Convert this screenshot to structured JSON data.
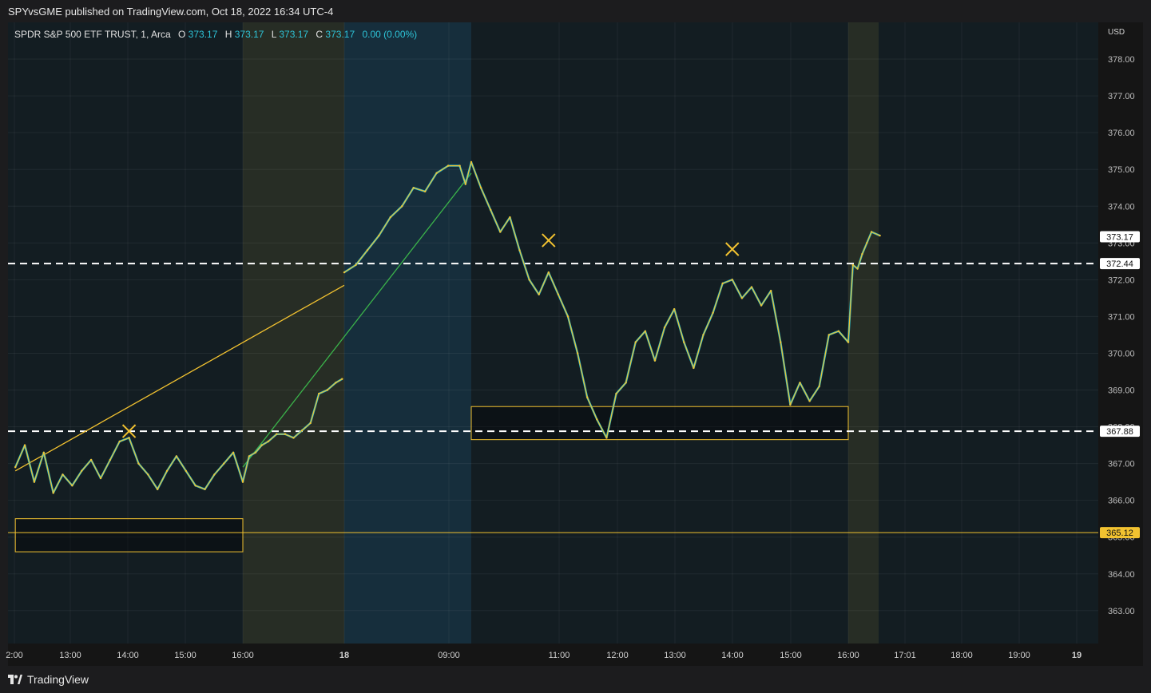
{
  "header": {
    "published": "SPYvsGME published on TradingView.com, Oct 18, 2022 16:34 UTC-4"
  },
  "legend": {
    "symbol": "SPDR S&P 500 ETF TRUST, 1, Arca",
    "o_label": "O",
    "o_value": "373.17",
    "h_label": "H",
    "h_value": "373.17",
    "l_label": "L",
    "l_value": "373.17",
    "c_label": "C",
    "c_value": "373.17",
    "change": "0.00 (0.00%)"
  },
  "footer": {
    "brand": "TradingView",
    "logo_icon": "tradingview-logo-icon"
  },
  "colors": {
    "accent": "#f2c230",
    "legend_value": "#2ec4d8",
    "price_line_up": "#f2c230",
    "price_line_alt": "#22b7c9",
    "trend_green": "#3bb34a"
  },
  "chart_data": {
    "type": "line",
    "title": "SPDR S&P 500 ETF TRUST, 1, Arca",
    "currency_label": "USD",
    "ylim": [
      362.4,
      379.0
    ],
    "y_ticks": [
      "378.00",
      "377.00",
      "376.00",
      "375.00",
      "374.00",
      "373.00",
      "372.00",
      "371.00",
      "370.00",
      "369.00",
      "368.00",
      "367.00",
      "366.00",
      "365.00",
      "364.00",
      "363.00"
    ],
    "x_ticks": [
      {
        "label": "2:00",
        "bold": false
      },
      {
        "label": "13:00",
        "bold": false
      },
      {
        "label": "14:00",
        "bold": false
      },
      {
        "label": "15:00",
        "bold": false
      },
      {
        "label": "16:00",
        "bold": false
      },
      {
        "label": "18",
        "bold": true
      },
      {
        "label": "09:00",
        "bold": false
      },
      {
        "label": "11:00",
        "bold": false
      },
      {
        "label": "12:00",
        "bold": false
      },
      {
        "label": "13:00",
        "bold": false
      },
      {
        "label": "14:00",
        "bold": false
      },
      {
        "label": "15:00",
        "bold": false
      },
      {
        "label": "16:00",
        "bold": false
      },
      {
        "label": "17:01",
        "bold": false
      },
      {
        "label": "18:00",
        "bold": false
      },
      {
        "label": "19:00",
        "bold": false
      },
      {
        "label": "19",
        "bold": true
      }
    ],
    "sessions": [
      {
        "name": "post-market-oct17",
        "start": "16:00",
        "end": "20:00"
      },
      {
        "name": "pre-market-oct18",
        "start": "04:00",
        "end": "09:30"
      },
      {
        "name": "post-market-oct18",
        "start": "16:00",
        "end": "16:34"
      }
    ],
    "price_labels": [
      {
        "value": 373.17,
        "text": "373.17",
        "style": "last"
      },
      {
        "value": 372.44,
        "text": "372.44",
        "style": "level"
      },
      {
        "value": 367.88,
        "text": "367.88",
        "style": "level"
      },
      {
        "value": 365.12,
        "text": "365.12",
        "style": "highlight"
      }
    ],
    "horizontal_lines": [
      {
        "value": 372.44,
        "style": "dashed"
      },
      {
        "value": 367.88,
        "style": "dashed"
      },
      {
        "value": 365.12,
        "style": "solid"
      }
    ],
    "zones": [
      {
        "from": "Oct 17 12:00",
        "to": "Oct 17 16:00",
        "high": 365.5,
        "low": 364.6
      },
      {
        "from": "Oct 18 09:30",
        "to": "Oct 18 16:00",
        "high": 368.55,
        "low": 367.65
      }
    ],
    "series": [
      {
        "points": [
          [
            "Oct 17 12:00",
            366.9
          ],
          [
            "Oct 17 12:10",
            367.5
          ],
          [
            "Oct 17 12:20",
            366.5
          ],
          [
            "Oct 17 12:30",
            367.3
          ],
          [
            "Oct 17 12:40",
            366.2
          ],
          [
            "Oct 17 12:50",
            366.7
          ],
          [
            "Oct 17 13:00",
            366.4
          ],
          [
            "Oct 17 13:10",
            366.8
          ],
          [
            "Oct 17 13:20",
            367.1
          ],
          [
            "Oct 17 13:30",
            366.6
          ],
          [
            "Oct 17 13:40",
            367.1
          ],
          [
            "Oct 17 13:50",
            367.6
          ],
          [
            "Oct 17 14:00",
            367.7
          ],
          [
            "Oct 17 14:10",
            367.0
          ],
          [
            "Oct 17 14:20",
            366.7
          ],
          [
            "Oct 17 14:30",
            366.3
          ],
          [
            "Oct 17 14:40",
            366.8
          ],
          [
            "Oct 17 14:50",
            367.2
          ],
          [
            "Oct 17 15:00",
            366.8
          ],
          [
            "Oct 17 15:10",
            366.4
          ],
          [
            "Oct 17 15:20",
            366.3
          ],
          [
            "Oct 17 15:30",
            366.7
          ],
          [
            "Oct 17 15:40",
            367.0
          ],
          [
            "Oct 17 15:50",
            367.3
          ],
          [
            "Oct 17 16:00",
            366.5
          ],
          [
            "Oct 17 16:15",
            367.2
          ],
          [
            "Oct 17 16:30",
            367.3
          ],
          [
            "Oct 17 16:45",
            367.5
          ],
          [
            "Oct 17 17:00",
            367.6
          ],
          [
            "Oct 17 17:20",
            367.8
          ],
          [
            "Oct 17 17:40",
            367.8
          ],
          [
            "Oct 17 18:00",
            367.7
          ],
          [
            "Oct 17 18:20",
            367.9
          ],
          [
            "Oct 17 18:40",
            368.1
          ],
          [
            "Oct 17 19:00",
            368.9
          ],
          [
            "Oct 17 19:20",
            369.0
          ],
          [
            "Oct 17 19:40",
            369.2
          ],
          [
            "Oct 17 19:55",
            369.3
          ],
          [
            "Oct 18 04:00",
            372.2
          ],
          [
            "Oct 18 04:30",
            372.4
          ],
          [
            "Oct 18 05:00",
            372.8
          ],
          [
            "Oct 18 05:30",
            373.2
          ],
          [
            "Oct 18 06:00",
            373.7
          ],
          [
            "Oct 18 06:30",
            374.0
          ],
          [
            "Oct 18 07:00",
            374.5
          ],
          [
            "Oct 18 07:30",
            374.4
          ],
          [
            "Oct 18 08:00",
            374.9
          ],
          [
            "Oct 18 08:30",
            375.1
          ],
          [
            "Oct 18 09:00",
            375.1
          ],
          [
            "Oct 18 09:15",
            374.6
          ],
          [
            "Oct 18 09:30",
            375.2
          ],
          [
            "Oct 18 09:40",
            374.5
          ],
          [
            "Oct 18 09:50",
            373.9
          ],
          [
            "Oct 18 10:00",
            373.3
          ],
          [
            "Oct 18 10:10",
            373.7
          ],
          [
            "Oct 18 10:20",
            372.8
          ],
          [
            "Oct 18 10:30",
            372.0
          ],
          [
            "Oct 18 10:40",
            371.6
          ],
          [
            "Oct 18 10:50",
            372.2
          ],
          [
            "Oct 18 11:00",
            371.6
          ],
          [
            "Oct 18 11:10",
            371.0
          ],
          [
            "Oct 18 11:20",
            370.0
          ],
          [
            "Oct 18 11:30",
            368.8
          ],
          [
            "Oct 18 11:40",
            368.2
          ],
          [
            "Oct 18 11:50",
            367.7
          ],
          [
            "Oct 18 12:00",
            368.9
          ],
          [
            "Oct 18 12:10",
            369.2
          ],
          [
            "Oct 18 12:20",
            370.3
          ],
          [
            "Oct 18 12:30",
            370.6
          ],
          [
            "Oct 18 12:40",
            369.8
          ],
          [
            "Oct 18 12:50",
            370.7
          ],
          [
            "Oct 18 13:00",
            371.2
          ],
          [
            "Oct 18 13:10",
            370.3
          ],
          [
            "Oct 18 13:20",
            369.6
          ],
          [
            "Oct 18 13:30",
            370.5
          ],
          [
            "Oct 18 13:40",
            371.1
          ],
          [
            "Oct 18 13:50",
            371.9
          ],
          [
            "Oct 18 14:00",
            372.0
          ],
          [
            "Oct 18 14:10",
            371.5
          ],
          [
            "Oct 18 14:20",
            371.8
          ],
          [
            "Oct 18 14:30",
            371.3
          ],
          [
            "Oct 18 14:40",
            371.7
          ],
          [
            "Oct 18 14:50",
            370.3
          ],
          [
            "Oct 18 15:00",
            368.6
          ],
          [
            "Oct 18 15:10",
            369.2
          ],
          [
            "Oct 18 15:20",
            368.7
          ],
          [
            "Oct 18 15:30",
            369.1
          ],
          [
            "Oct 18 15:40",
            370.5
          ],
          [
            "Oct 18 15:50",
            370.6
          ],
          [
            "Oct 18 16:00",
            370.3
          ],
          [
            "Oct 18 16:05",
            372.4
          ],
          [
            "Oct 18 16:10",
            372.3
          ],
          [
            "Oct 18 16:15",
            372.7
          ],
          [
            "Oct 18 16:20",
            373.0
          ],
          [
            "Oct 18 16:25",
            373.3
          ],
          [
            "Oct 18 16:34",
            373.2
          ]
        ]
      }
    ],
    "drawings": [
      {
        "type": "trend-line",
        "color": "yellow",
        "from": [
          "Oct 17 12:00",
          366.8
        ],
        "to": [
          "Oct 18 04:00",
          371.85
        ]
      },
      {
        "type": "trend-line",
        "color": "green",
        "from": [
          "Oct 17 16:00",
          366.9
        ],
        "to": [
          "Oct 18 09:30",
          374.9
        ]
      },
      {
        "type": "cross-marker",
        "at": [
          "Oct 17 14:00",
          367.88
        ]
      },
      {
        "type": "cross-marker",
        "at": [
          "Oct 18 10:50",
          373.07
        ]
      },
      {
        "type": "cross-marker",
        "at": [
          "Oct 18 14:00",
          372.83
        ]
      }
    ]
  }
}
